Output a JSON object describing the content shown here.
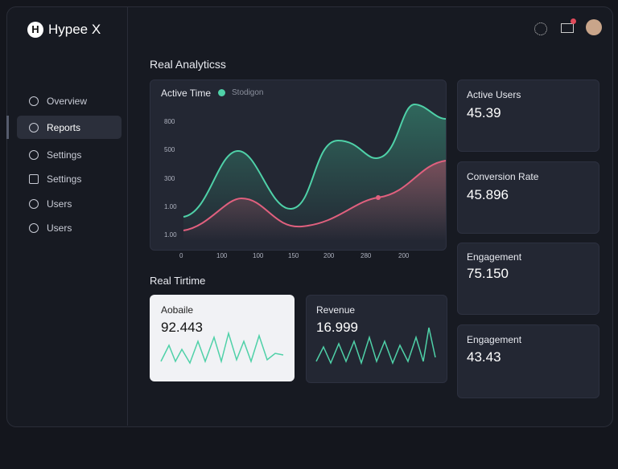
{
  "brand": "Hypee X",
  "nav": [
    "Overview",
    "Reports",
    "Settings",
    "Settings",
    "Users",
    "Users"
  ],
  "main": {
    "title": "Real Analyticss",
    "chart": {
      "title": "Active Time",
      "legend": "Stodigon",
      "yticks": [
        "800",
        "500",
        "300",
        "1.00",
        "1.00"
      ],
      "xticks": [
        "0",
        "100",
        "100",
        "150",
        "200",
        "280",
        "200"
      ]
    },
    "section_title": "Real Tirtime",
    "cards": [
      {
        "label": "Aobaile",
        "value": "92.443"
      },
      {
        "label": "Revenue",
        "value": "16.999"
      }
    ]
  },
  "side": [
    {
      "label": "Active Users",
      "value": "45.39"
    },
    {
      "label": "Conversion Rate",
      "value": "45.896"
    },
    {
      "label": "Engagement",
      "value": "75.150"
    },
    {
      "label": "Engagement",
      "value": "43.43"
    }
  ]
}
